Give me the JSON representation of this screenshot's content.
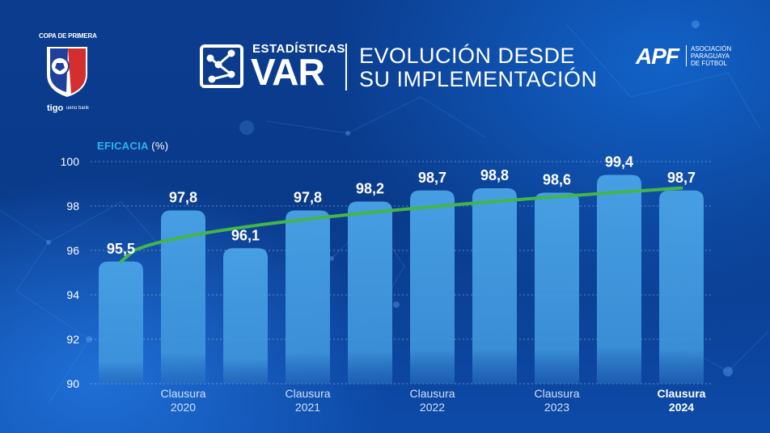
{
  "header": {
    "title_small": "ESTADÍSTICAS",
    "title_big": "VAR",
    "subtitle_line1": "EVOLUCIÓN DESDE",
    "subtitle_line2": "SU IMPLEMENTACIÓN"
  },
  "league_logo": {
    "title": "COPA DE PRIMERA",
    "sponsor1": "tigo",
    "sponsor2": "ueno bank"
  },
  "org": {
    "acronym": "APF",
    "line1": "ASOCIACIÓN",
    "line2": "PARAGUAYA",
    "line3": "DE FÚTBOL"
  },
  "colors": {
    "bar": "#4aa3e6",
    "trend": "#43b649",
    "accent": "#29b6f6"
  },
  "chart_data": {
    "type": "bar",
    "title": "EVOLUCIÓN DESDE SU IMPLEMENTACIÓN",
    "ylabel": "EFICACIA",
    "ylabel_unit": "(%)",
    "ylim": [
      90,
      100
    ],
    "yticks": [
      90,
      92,
      94,
      96,
      98,
      100
    ],
    "grid": true,
    "values": [
      95.5,
      97.8,
      96.1,
      97.8,
      98.2,
      98.7,
      98.8,
      98.6,
      99.4,
      98.7
    ],
    "data_labels": [
      "95,5",
      "97,8",
      "96,1",
      "97,8",
      "98,2",
      "98,7",
      "98,8",
      "98,6",
      "99,4",
      "98,7"
    ],
    "x_labels": [
      {
        "bar_index": 1,
        "line1": "Clausura",
        "line2": "2020"
      },
      {
        "bar_index": 3,
        "line1": "Clausura",
        "line2": "2021"
      },
      {
        "bar_index": 5,
        "line1": "Clausura",
        "line2": "2022"
      },
      {
        "bar_index": 7,
        "line1": "Clausura",
        "line2": "2023"
      },
      {
        "bar_index": 9,
        "line1": "Clausura",
        "line2": "2024"
      }
    ],
    "trend_line": {
      "type": "line",
      "name": "tendencia"
    }
  }
}
